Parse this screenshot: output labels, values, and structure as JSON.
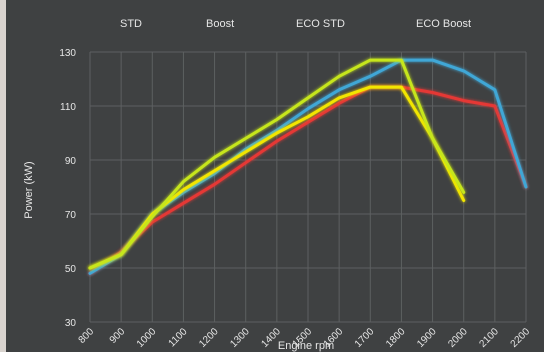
{
  "chart_data": {
    "type": "line",
    "xlabel": "Engine rpm",
    "ylabel": "Power (kW)",
    "categories": [
      "800",
      "900",
      "1000",
      "1100",
      "1200",
      "1300",
      "1400",
      "1500",
      "1600",
      "1700",
      "1800",
      "1900",
      "2000",
      "2100",
      "2200"
    ],
    "ylim": [
      30,
      130
    ],
    "yticks": [
      30,
      50,
      70,
      90,
      110,
      130
    ],
    "grid": true,
    "legend_position": "top",
    "series": [
      {
        "name": "STD",
        "color": "#e53935",
        "values": [
          48,
          56,
          67,
          74,
          81,
          89,
          97,
          104,
          111,
          117,
          117,
          115,
          112,
          110,
          80
        ]
      },
      {
        "name": "Boost",
        "color": "#3fa7d6",
        "values": [
          48,
          55,
          70,
          78,
          85,
          94,
          101,
          109,
          116,
          121,
          127,
          127,
          123,
          116,
          80
        ]
      },
      {
        "name": "ECO STD",
        "color": "#f2e600",
        "values": [
          50,
          55,
          70,
          79,
          86,
          93,
          100,
          106,
          113,
          117,
          117,
          98,
          75,
          null,
          null
        ]
      },
      {
        "name": "ECO Boost",
        "color": "#c6e61e",
        "values": [
          50,
          55,
          69,
          82,
          91,
          98,
          105,
          113,
          121,
          127,
          127,
          98,
          78,
          null,
          null
        ]
      }
    ]
  }
}
